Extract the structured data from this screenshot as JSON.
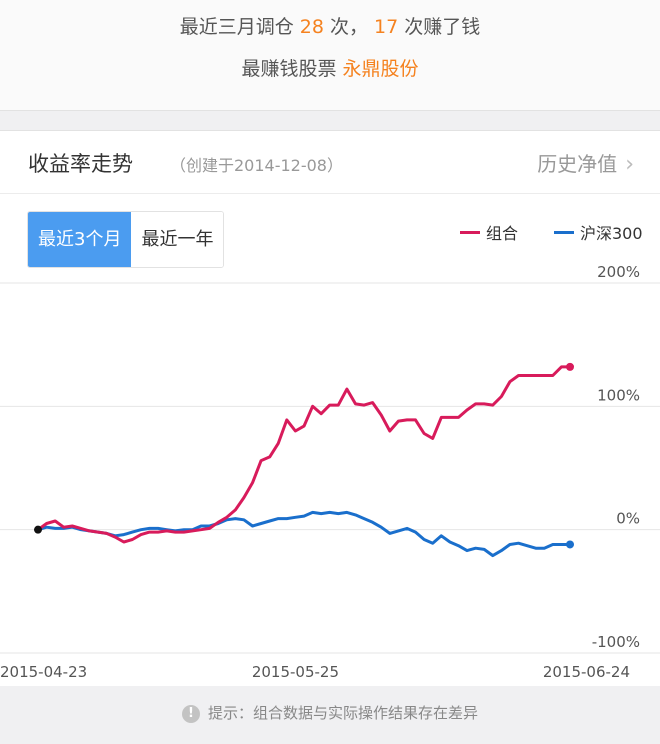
{
  "summary": {
    "line1_prefix": "最近三月调仓",
    "trades": "28",
    "line1_mid": "次，",
    "profitable": "17",
    "line1_suffix": "次赚了钱",
    "best_label": "最赚钱股票",
    "best_stock": "永鼎股份"
  },
  "card": {
    "title": "收益率走势",
    "created": "（创建于2014-12-08）",
    "history_label": "历史净值",
    "history_chevron": "chevron-right-icon"
  },
  "range_buttons": [
    {
      "label": "最近3个月",
      "active": true
    },
    {
      "label": "最近一年",
      "active": false
    }
  ],
  "colors": {
    "portfolio": "#d81b5b",
    "index": "#1a6fcc",
    "accent": "#f5821f",
    "active_button": "#4b9cf0"
  },
  "footer": {
    "icon": "info-icon",
    "text": "提示：组合数据与实际操作结果存在差异"
  },
  "chart_data": {
    "type": "line",
    "ylim": [
      -100,
      200
    ],
    "y_ticks": [
      {
        "value": 200,
        "label": "200%"
      },
      {
        "value": 100,
        "label": "100%"
      },
      {
        "value": 0,
        "label": "0%"
      },
      {
        "value": -100,
        "label": "-100%"
      }
    ],
    "x_ticks": [
      {
        "index": 0,
        "label": "2015-04-23"
      },
      {
        "index": 30,
        "label": "2015-05-25"
      },
      {
        "index": 59,
        "label": "2015-06-24"
      }
    ],
    "legend_position": "top-right",
    "series": [
      {
        "name": "组合",
        "color": "#d81b5b",
        "values": [
          0,
          5,
          7,
          2,
          3,
          1,
          -1,
          -2,
          -3,
          -6,
          -10,
          -8,
          -4,
          -2,
          -2,
          -1,
          -2,
          -2,
          -1,
          0,
          1,
          6,
          10,
          16,
          26,
          38,
          56,
          59,
          70,
          89,
          80,
          84,
          100,
          94,
          101,
          101,
          114,
          102,
          101,
          103,
          93,
          80,
          88,
          89,
          89,
          78,
          74,
          91,
          91,
          91,
          97,
          102,
          102,
          101,
          108,
          120,
          125,
          125,
          125,
          125,
          125,
          132,
          132
        ]
      },
      {
        "name": "沪深300",
        "color": "#1a6fcc",
        "values": [
          0,
          2,
          1,
          1,
          2,
          0,
          -1,
          -2,
          -3,
          -5,
          -4,
          -2,
          0,
          1,
          1,
          0,
          -1,
          0,
          0,
          3,
          3,
          5,
          8,
          9,
          8,
          3,
          5,
          7,
          9,
          9,
          10,
          11,
          14,
          13,
          14,
          13,
          14,
          12,
          9,
          6,
          2,
          -3,
          -1,
          1,
          -2,
          -8,
          -11,
          -5,
          -10,
          -13,
          -17,
          -15,
          -16,
          -21,
          -17,
          -12,
          -11,
          -13,
          -15,
          -15,
          -12,
          -12,
          -12
        ]
      }
    ]
  }
}
